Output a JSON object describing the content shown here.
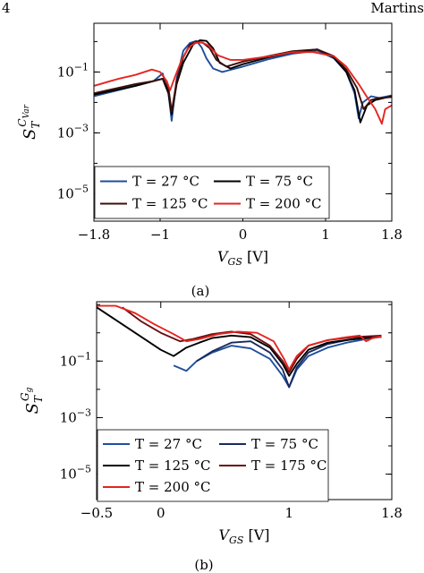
{
  "header": {
    "page_number": "4",
    "author": "Martins"
  },
  "captions": [
    "(a)",
    "(b)"
  ],
  "chart_data": [
    {
      "type": "line",
      "title": "",
      "xlabel": "V_GS [V]",
      "xlabel_main": "V",
      "xlabel_sub": "GS",
      "xlabel_unit": " [V]",
      "ylabel": "S_T^{C_Var}",
      "ylabel_main": "S",
      "ylabel_sub": "T",
      "ylabel_sup": "C",
      "ylabel_supsub": "Var",
      "xlim": [
        -1.8,
        1.8
      ],
      "ylim_log10": [
        -5.9,
        0.6
      ],
      "y_scale": "log",
      "x_ticks": [
        -1.8,
        -1,
        0,
        1,
        1.8
      ],
      "x_tick_labels": [
        "−1.8",
        "−1",
        "0",
        "1",
        "1.8"
      ],
      "y_ticks_log10": [
        -5,
        -3,
        -1
      ],
      "y_tick_labels": [
        {
          "base": "10",
          "exp": "−5"
        },
        {
          "base": "10",
          "exp": "−3"
        },
        {
          "base": "10",
          "exp": "−1"
        }
      ],
      "legend_position": "bottom-left",
      "legend_columns": 2,
      "series": [
        {
          "name": "T = 27 °C",
          "color": "#1f4e9c",
          "x": [
            -1.8,
            -1.3,
            -1.08,
            -0.97,
            -0.9,
            -0.86,
            -0.8,
            -0.72,
            -0.64,
            -0.56,
            -0.5,
            -0.44,
            -0.36,
            -0.25,
            0,
            0.3,
            0.6,
            0.9,
            1.1,
            1.25,
            1.35,
            1.4,
            1.45,
            1.55,
            1.65,
            1.8
          ],
          "y": [
            0.016,
            0.035,
            0.05,
            0.09,
            0.02,
            0.0025,
            0.06,
            0.5,
            0.9,
            1.05,
            0.65,
            0.28,
            0.13,
            0.1,
            0.15,
            0.26,
            0.4,
            0.5,
            0.28,
            0.1,
            0.02,
            0.003,
            0.01,
            0.016,
            0.014,
            0.017
          ]
        },
        {
          "name": "T = 75 °C",
          "color": "#000000",
          "x": [
            -1.8,
            -1.3,
            -1.08,
            -0.97,
            -0.9,
            -0.86,
            -0.8,
            -0.72,
            -0.6,
            -0.52,
            -0.44,
            -0.36,
            -0.28,
            -0.15,
            0,
            0.3,
            0.6,
            0.9,
            1.1,
            1.25,
            1.35,
            1.42,
            1.5,
            1.6,
            1.8
          ],
          "y": [
            0.018,
            0.035,
            0.05,
            0.06,
            0.02,
            0.004,
            0.04,
            0.2,
            0.8,
            1.1,
            1.05,
            0.6,
            0.2,
            0.13,
            0.18,
            0.3,
            0.45,
            0.55,
            0.3,
            0.1,
            0.025,
            0.0022,
            0.008,
            0.012,
            0.016
          ]
        },
        {
          "name": "T = 125 °C",
          "color": "#3a0e0a",
          "x": [
            -1.8,
            -1.3,
            -1.08,
            -0.97,
            -0.9,
            -0.86,
            -0.8,
            -0.72,
            -0.64,
            -0.56,
            -0.48,
            -0.4,
            -0.32,
            -0.2,
            0,
            0.3,
            0.6,
            0.9,
            1.1,
            1.25,
            1.38,
            1.46,
            1.55,
            1.65,
            1.8
          ],
          "y": [
            0.02,
            0.04,
            0.05,
            0.06,
            0.03,
            0.005,
            0.05,
            0.3,
            0.8,
            1.0,
            0.9,
            0.6,
            0.25,
            0.15,
            0.22,
            0.33,
            0.48,
            0.55,
            0.33,
            0.12,
            0.03,
            0.006,
            0.012,
            0.014,
            0.015
          ]
        },
        {
          "name": "T = 200 °C",
          "color": "#e42521",
          "x": [
            -1.8,
            -1.5,
            -1.3,
            -1.1,
            -1.0,
            -0.92,
            -0.88,
            -0.82,
            -0.74,
            -0.66,
            -0.58,
            -0.5,
            -0.42,
            -0.3,
            -0.15,
            0,
            0.3,
            0.6,
            0.85,
            1.1,
            1.25,
            1.4,
            1.5,
            1.6,
            1.68,
            1.72,
            1.8
          ],
          "y": [
            0.035,
            0.06,
            0.08,
            0.12,
            0.1,
            0.05,
            0.025,
            0.07,
            0.25,
            0.6,
            0.9,
            0.95,
            0.75,
            0.35,
            0.25,
            0.25,
            0.32,
            0.45,
            0.45,
            0.33,
            0.15,
            0.04,
            0.015,
            0.006,
            0.002,
            0.006,
            0.008
          ]
        }
      ]
    },
    {
      "type": "line",
      "title": "",
      "xlabel": "V_GS [V]",
      "xlabel_main": "V",
      "xlabel_sub": "GS",
      "xlabel_unit": " [V]",
      "ylabel": "S_T^{G_g}",
      "ylabel_main": "S",
      "ylabel_sub": "T",
      "ylabel_sup": "G",
      "ylabel_supsub": "g",
      "xlim": [
        -0.5,
        1.8
      ],
      "ylim_log10": [
        -5.9,
        1.1
      ],
      "y_scale": "log",
      "x_ticks": [
        -0.5,
        0,
        1,
        1.8
      ],
      "x_tick_labels": [
        "−0.5",
        "0",
        "1",
        "1.8"
      ],
      "y_ticks_log10": [
        -5,
        -3,
        -1
      ],
      "y_tick_labels": [
        {
          "base": "10",
          "exp": "−5"
        },
        {
          "base": "10",
          "exp": "−3"
        },
        {
          "base": "10",
          "exp": "−1"
        }
      ],
      "legend_position": "bottom-left",
      "legend_columns": 2,
      "series": [
        {
          "name": "T = 27 °C",
          "color": "#1f4e9c",
          "x": [
            0.1,
            0.2,
            0.28,
            0.4,
            0.55,
            0.7,
            0.85,
            0.95,
            1.0,
            1.06,
            1.15,
            1.3,
            1.45,
            1.6,
            1.7,
            1.72
          ],
          "y": [
            0.07,
            0.045,
            0.1,
            0.2,
            0.35,
            0.28,
            0.12,
            0.03,
            0.012,
            0.05,
            0.15,
            0.3,
            0.45,
            0.6,
            0.7,
            0.7
          ]
        },
        {
          "name": "T = 75 °C",
          "color": "#1a2a5e",
          "x": [
            0.28,
            0.4,
            0.55,
            0.7,
            0.85,
            0.95,
            1.0,
            1.06,
            1.15,
            1.3,
            1.45,
            1.6,
            1.72
          ],
          "y": [
            0.1,
            0.22,
            0.45,
            0.5,
            0.2,
            0.05,
            0.012,
            0.06,
            0.2,
            0.4,
            0.55,
            0.65,
            0.75
          ]
        },
        {
          "name": "T = 125 °C",
          "color": "#000000",
          "x": [
            -0.5,
            -0.3,
            -0.1,
            0.0,
            0.1,
            0.2,
            0.3,
            0.4,
            0.55,
            0.7,
            0.85,
            0.95,
            1.0,
            1.06,
            1.15,
            1.3,
            1.5,
            1.7,
            1.72
          ],
          "y": [
            8.0,
            2.0,
            0.5,
            0.25,
            0.15,
            0.3,
            0.45,
            0.65,
            0.8,
            0.7,
            0.3,
            0.08,
            0.03,
            0.08,
            0.25,
            0.45,
            0.6,
            0.75,
            0.75
          ]
        },
        {
          "name": "T = 175 °C",
          "color": "#6a0f12",
          "x": [
            -0.3,
            -0.15,
            0.0,
            0.15,
            0.25,
            0.4,
            0.55,
            0.7,
            0.85,
            0.95,
            1.0,
            1.06,
            1.15,
            1.3,
            1.5,
            1.72
          ],
          "y": [
            8.0,
            2.5,
            1.0,
            0.5,
            0.6,
            0.9,
            1.1,
            0.9,
            0.35,
            0.1,
            0.04,
            0.12,
            0.35,
            0.55,
            0.7,
            0.8
          ]
        },
        {
          "name": "T = 200 °C",
          "color": "#e42521",
          "x": [
            -0.5,
            -0.35,
            -0.2,
            -0.05,
            0.1,
            0.2,
            0.3,
            0.45,
            0.6,
            0.75,
            0.88,
            0.96,
            1.0,
            1.06,
            1.15,
            1.3,
            1.45,
            1.55,
            1.6,
            1.65,
            1.72
          ],
          "y": [
            9.0,
            9.0,
            5.0,
            2.0,
            0.9,
            0.5,
            0.6,
            0.9,
            1.1,
            1.0,
            0.5,
            0.12,
            0.05,
            0.15,
            0.35,
            0.55,
            0.7,
            0.8,
            0.5,
            0.65,
            0.75
          ]
        }
      ]
    }
  ]
}
